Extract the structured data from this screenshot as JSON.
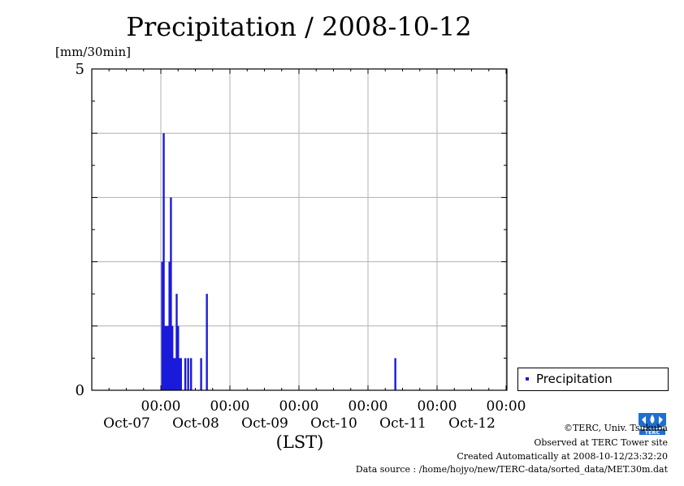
{
  "chart_data": {
    "type": "bar",
    "title": "Precipitation / 2008-10-12",
    "ylabel": "[mm/30min]",
    "xlabel": "(LST)",
    "ylim": [
      0,
      5
    ],
    "y_tick_labels": [
      "0",
      "5"
    ],
    "x_tick_labels": [
      {
        "time": "00:00",
        "date": "Oct-07"
      },
      {
        "time": "00:00",
        "date": "Oct-08"
      },
      {
        "time": "00:00",
        "date": "Oct-09"
      },
      {
        "time": "00:00",
        "date": "Oct-10"
      },
      {
        "time": "00:00",
        "date": "Oct-11"
      },
      {
        "time": "00:00",
        "date": "Oct-12"
      }
    ],
    "grid": true,
    "legend_position": "bottom-right outside",
    "series": [
      {
        "name": "Precipitation",
        "color": "#1a1adb",
        "points": [
          {
            "x": "2008-10-07 00:30",
            "y": 2.0
          },
          {
            "x": "2008-10-07 01:00",
            "y": 4.0
          },
          {
            "x": "2008-10-07 01:30",
            "y": 1.0
          },
          {
            "x": "2008-10-07 02:00",
            "y": 1.0
          },
          {
            "x": "2008-10-07 02:30",
            "y": 1.0
          },
          {
            "x": "2008-10-07 03:00",
            "y": 2.0
          },
          {
            "x": "2008-10-07 03:30",
            "y": 3.0
          },
          {
            "x": "2008-10-07 04:00",
            "y": 1.0
          },
          {
            "x": "2008-10-07 04:30",
            "y": 0.5
          },
          {
            "x": "2008-10-07 05:00",
            "y": 0.5
          },
          {
            "x": "2008-10-07 05:30",
            "y": 1.5
          },
          {
            "x": "2008-10-07 06:00",
            "y": 1.0
          },
          {
            "x": "2008-10-07 06:30",
            "y": 0.5
          },
          {
            "x": "2008-10-07 07:00",
            "y": 0.5
          },
          {
            "x": "2008-10-07 08:30",
            "y": 0.5
          },
          {
            "x": "2008-10-07 09:30",
            "y": 0.5
          },
          {
            "x": "2008-10-07 10:30",
            "y": 0.5
          },
          {
            "x": "2008-10-07 14:00",
            "y": 0.5
          },
          {
            "x": "2008-10-07 16:00",
            "y": 1.5
          },
          {
            "x": "2008-10-10 09:30",
            "y": 0.5
          }
        ]
      }
    ]
  },
  "legend": {
    "label": "Precipitation",
    "swatch_color": "#1a1adb"
  },
  "logo": {
    "icon": "terc-logo-icon",
    "text": "TERC",
    "color": "#1f6fd1"
  },
  "credits": {
    "line1": "©TERC, Univ. Tsukuba",
    "line2": "Observed at TERC Tower site",
    "line3": "Created Automatically at 2008-10-12/23:32:20",
    "line4": "Data source : /home/hojyo/new/TERC-data/sorted_data/MET.30m.dat"
  }
}
